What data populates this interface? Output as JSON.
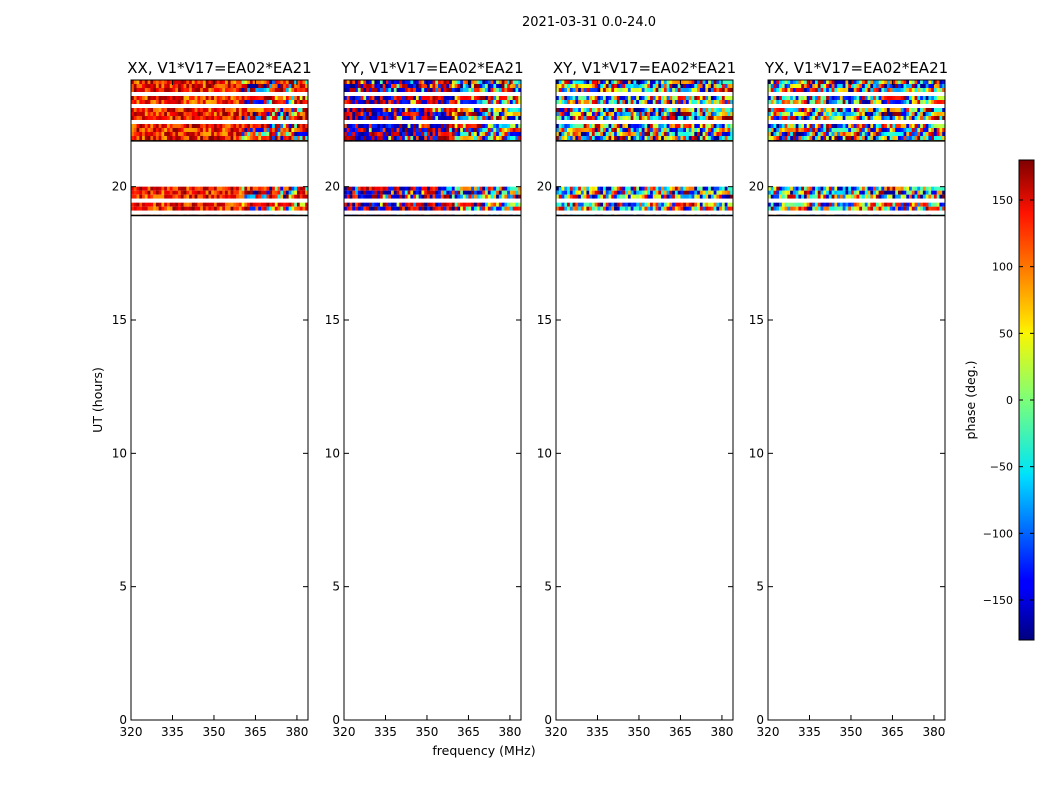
{
  "figure": {
    "suptitle": "2021-03-31 0.0-24.0",
    "ylabel": "UT (hours)",
    "xlabel": "frequency (MHz)"
  },
  "chart_data": {
    "type": "heatmap",
    "title": "2021-03-31 0.0-24.0",
    "xlabel": "frequency (MHz)",
    "ylabel": "UT (hours)",
    "xlim": [
      320,
      384
    ],
    "ylim": [
      0,
      24
    ],
    "xticks": [
      320,
      335,
      350,
      365,
      380
    ],
    "yticks": [
      0,
      5,
      10,
      15,
      20
    ],
    "data_bands_hours": [
      [
        18.9,
        20.0
      ],
      [
        21.7,
        24.0
      ]
    ],
    "colormap": "jet",
    "panels": [
      {
        "title": "XX, V1*V17=EA02*EA21",
        "palette_style": "warm"
      },
      {
        "title": "YY, V1*V17=EA02*EA21",
        "palette_style": "mixed"
      },
      {
        "title": "XY, V1*V17=EA02*EA21",
        "palette_style": "noise"
      },
      {
        "title": "YX, V1*V17=EA02*EA21",
        "palette_style": "noise"
      }
    ],
    "colorbar": {
      "label": "phase (deg.)",
      "range": [
        -180,
        180
      ],
      "ticks": [
        -150,
        -100,
        -50,
        0,
        50,
        100,
        150
      ],
      "tick_labels": [
        "−150",
        "−100",
        "−50",
        "0",
        "50",
        "100",
        "150"
      ]
    }
  }
}
